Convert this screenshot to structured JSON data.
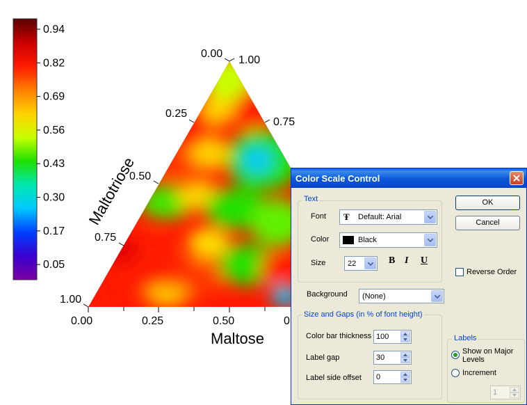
{
  "chart_data": {
    "type": "heatmap",
    "subtype": "ternary-contour",
    "colorbar": {
      "ticks": [
        "0.94",
        "0.82",
        "0.69",
        "0.56",
        "0.43",
        "0.30",
        "0.17",
        "0.05"
      ],
      "colors": [
        "#5a0000",
        "#c80000",
        "#ff1a00",
        "#ff7f00",
        "#ffd200",
        "#c8ff00",
        "#20e000",
        "#00e8b0",
        "#00c8ff",
        "#0040ff",
        "#3a00d0",
        "#7a00a0"
      ]
    },
    "axes": {
      "bottom": {
        "label": "Maltose",
        "ticks": [
          "0.00",
          "0.25",
          "0.50"
        ],
        "partial_tick": "0"
      },
      "left": {
        "label": "Maltotriose",
        "ticks": [
          "0.25",
          "0.50",
          "0.75",
          "1.00"
        ]
      },
      "right": {
        "ticks": [
          "1.00",
          "0.75"
        ]
      },
      "apex_left": "0.00"
    }
  },
  "dialog": {
    "title": "Color Scale Control",
    "text_group": {
      "label": "Text",
      "font_label": "Font",
      "font_value": "Default: Arial",
      "font_icon": "truetype-icon",
      "color_label": "Color",
      "color_value": "Black",
      "color_swatch": "#000000",
      "size_label": "Size",
      "size_value": "22",
      "bold": "B",
      "italic": "I",
      "underline": "U"
    },
    "ok": "OK",
    "cancel": "Cancel",
    "reverse_order": "Reverse Order",
    "background_label": "Background",
    "background_value": "(None)",
    "gaps_group": {
      "label": "Size and Gaps (in % of font height)",
      "thickness_label": "Color bar thickness",
      "thickness_value": "100",
      "gap_label": "Label gap",
      "gap_value": "30",
      "offset_label": "Label side offset",
      "offset_value": "0"
    },
    "labels_group": {
      "label": "Labels",
      "major": "Show on Major Levels",
      "increment": "Increment",
      "increment_value": "1"
    }
  }
}
